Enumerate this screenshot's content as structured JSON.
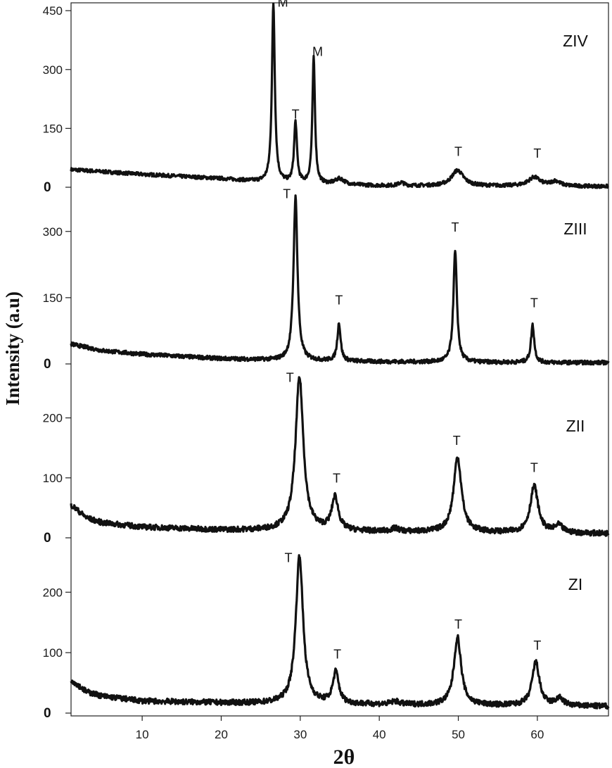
{
  "chart_data": {
    "type": "line",
    "title": "",
    "xlabel": "2θ",
    "ylabel": "Intensity (a.u)",
    "xlim": [
      1,
      69
    ],
    "x_ticks": [
      "10",
      "20",
      "30",
      "40",
      "50",
      "60"
    ],
    "series_color": "#111111",
    "panels": [
      {
        "name": "ZIV",
        "ylim": [
          0,
          470
        ],
        "y_ticks": [
          {
            "value": 0,
            "label": "0"
          },
          {
            "value": 150,
            "label": "150"
          },
          {
            "value": 300,
            "label": "300"
          },
          {
            "value": 450,
            "label": "450"
          }
        ],
        "baseline": [
          [
            1,
            45
          ],
          [
            10,
            33
          ],
          [
            20,
            22
          ],
          [
            25,
            14
          ],
          [
            27,
            12
          ],
          [
            30,
            8
          ],
          [
            40,
            4
          ],
          [
            50,
            3
          ],
          [
            60,
            3
          ],
          [
            69,
            2
          ]
        ],
        "peaks": [
          {
            "x": 26.6,
            "height": 455,
            "width": 0.22
          },
          {
            "x": 29.4,
            "height": 155,
            "width": 0.22
          },
          {
            "x": 31.7,
            "height": 320,
            "width": 0.2
          },
          {
            "x": 35.0,
            "height": 15,
            "width": 0.7
          },
          {
            "x": 42.8,
            "height": 8,
            "width": 0.4
          },
          {
            "x": 49.9,
            "height": 40,
            "width": 0.9
          },
          {
            "x": 59.6,
            "height": 22,
            "width": 0.9
          },
          {
            "x": 62.3,
            "height": 12,
            "width": 0.7
          }
        ],
        "peak_labels": [
          {
            "x": 27.8,
            "y": 460,
            "text": "M"
          },
          {
            "x": 29.4,
            "y": 175,
            "text": "T"
          },
          {
            "x": 32.2,
            "y": 335,
            "text": "M"
          },
          {
            "x": 50.0,
            "y": 80,
            "text": "T"
          },
          {
            "x": 60.0,
            "y": 75,
            "text": "T"
          }
        ]
      },
      {
        "name": "ZIII",
        "ylim": [
          0,
          400
        ],
        "y_ticks": [
          {
            "value": 0,
            "label": "0"
          },
          {
            "value": 150,
            "label": "150"
          },
          {
            "value": 300,
            "label": "300"
          }
        ],
        "baseline": [
          [
            1,
            45
          ],
          [
            5,
            30
          ],
          [
            10,
            22
          ],
          [
            20,
            12
          ],
          [
            28,
            8
          ],
          [
            40,
            5
          ],
          [
            50,
            4
          ],
          [
            60,
            3
          ],
          [
            69,
            3
          ]
        ],
        "peaks": [
          {
            "x": 29.4,
            "height": 370,
            "width": 0.3
          },
          {
            "x": 34.9,
            "height": 85,
            "width": 0.25
          },
          {
            "x": 49.6,
            "height": 250,
            "width": 0.27
          },
          {
            "x": 59.4,
            "height": 85,
            "width": 0.25
          }
        ],
        "peak_labels": [
          {
            "x": 28.3,
            "y": 375,
            "text": "T"
          },
          {
            "x": 34.9,
            "y": 135,
            "text": "T"
          },
          {
            "x": 49.6,
            "y": 300,
            "text": "T"
          },
          {
            "x": 59.6,
            "y": 128,
            "text": "T"
          }
        ]
      },
      {
        "name": "ZII",
        "ylim": [
          0,
          290
        ],
        "y_ticks": [
          {
            "value": 0,
            "label": "0"
          },
          {
            "value": 100,
            "label": "100"
          },
          {
            "value": 200,
            "label": "200"
          }
        ],
        "baseline": [
          [
            1,
            55
          ],
          [
            3,
            33
          ],
          [
            5,
            25
          ],
          [
            10,
            18
          ],
          [
            20,
            13
          ],
          [
            30,
            12
          ],
          [
            40,
            10
          ],
          [
            50,
            9
          ],
          [
            60,
            8
          ],
          [
            69,
            7
          ]
        ],
        "peaks": [
          {
            "x": 29.9,
            "height": 255,
            "width": 0.6
          },
          {
            "x": 34.4,
            "height": 55,
            "width": 0.5
          },
          {
            "x": 42.0,
            "height": 5,
            "width": 0.6
          },
          {
            "x": 49.9,
            "height": 125,
            "width": 0.6
          },
          {
            "x": 59.6,
            "height": 78,
            "width": 0.6
          },
          {
            "x": 62.7,
            "height": 12,
            "width": 0.6
          }
        ],
        "peak_labels": [
          {
            "x": 28.7,
            "y": 260,
            "text": "T"
          },
          {
            "x": 34.6,
            "y": 92,
            "text": "T"
          },
          {
            "x": 49.8,
            "y": 155,
            "text": "T"
          },
          {
            "x": 59.6,
            "y": 110,
            "text": "T"
          }
        ]
      },
      {
        "name": "ZI",
        "ylim": [
          0,
          290
        ],
        "y_ticks": [
          {
            "value": 0,
            "label": "0"
          },
          {
            "value": 100,
            "label": "100"
          },
          {
            "value": 200,
            "label": "200"
          }
        ],
        "baseline": [
          [
            1,
            55
          ],
          [
            3,
            35
          ],
          [
            5,
            28
          ],
          [
            10,
            20
          ],
          [
            20,
            17
          ],
          [
            30,
            15
          ],
          [
            40,
            14
          ],
          [
            50,
            13
          ],
          [
            60,
            12
          ],
          [
            69,
            11
          ]
        ],
        "peaks": [
          {
            "x": 29.9,
            "height": 245,
            "width": 0.55
          },
          {
            "x": 34.5,
            "height": 52,
            "width": 0.45
          },
          {
            "x": 42.0,
            "height": 5,
            "width": 0.6
          },
          {
            "x": 49.9,
            "height": 112,
            "width": 0.55
          },
          {
            "x": 59.8,
            "height": 72,
            "width": 0.55
          },
          {
            "x": 62.8,
            "height": 12,
            "width": 0.6
          }
        ],
        "peak_labels": [
          {
            "x": 28.5,
            "y": 250,
            "text": "T"
          },
          {
            "x": 34.7,
            "y": 90,
            "text": "T"
          },
          {
            "x": 50.0,
            "y": 140,
            "text": "T"
          },
          {
            "x": 60.0,
            "y": 105,
            "text": "T"
          }
        ]
      }
    ]
  }
}
